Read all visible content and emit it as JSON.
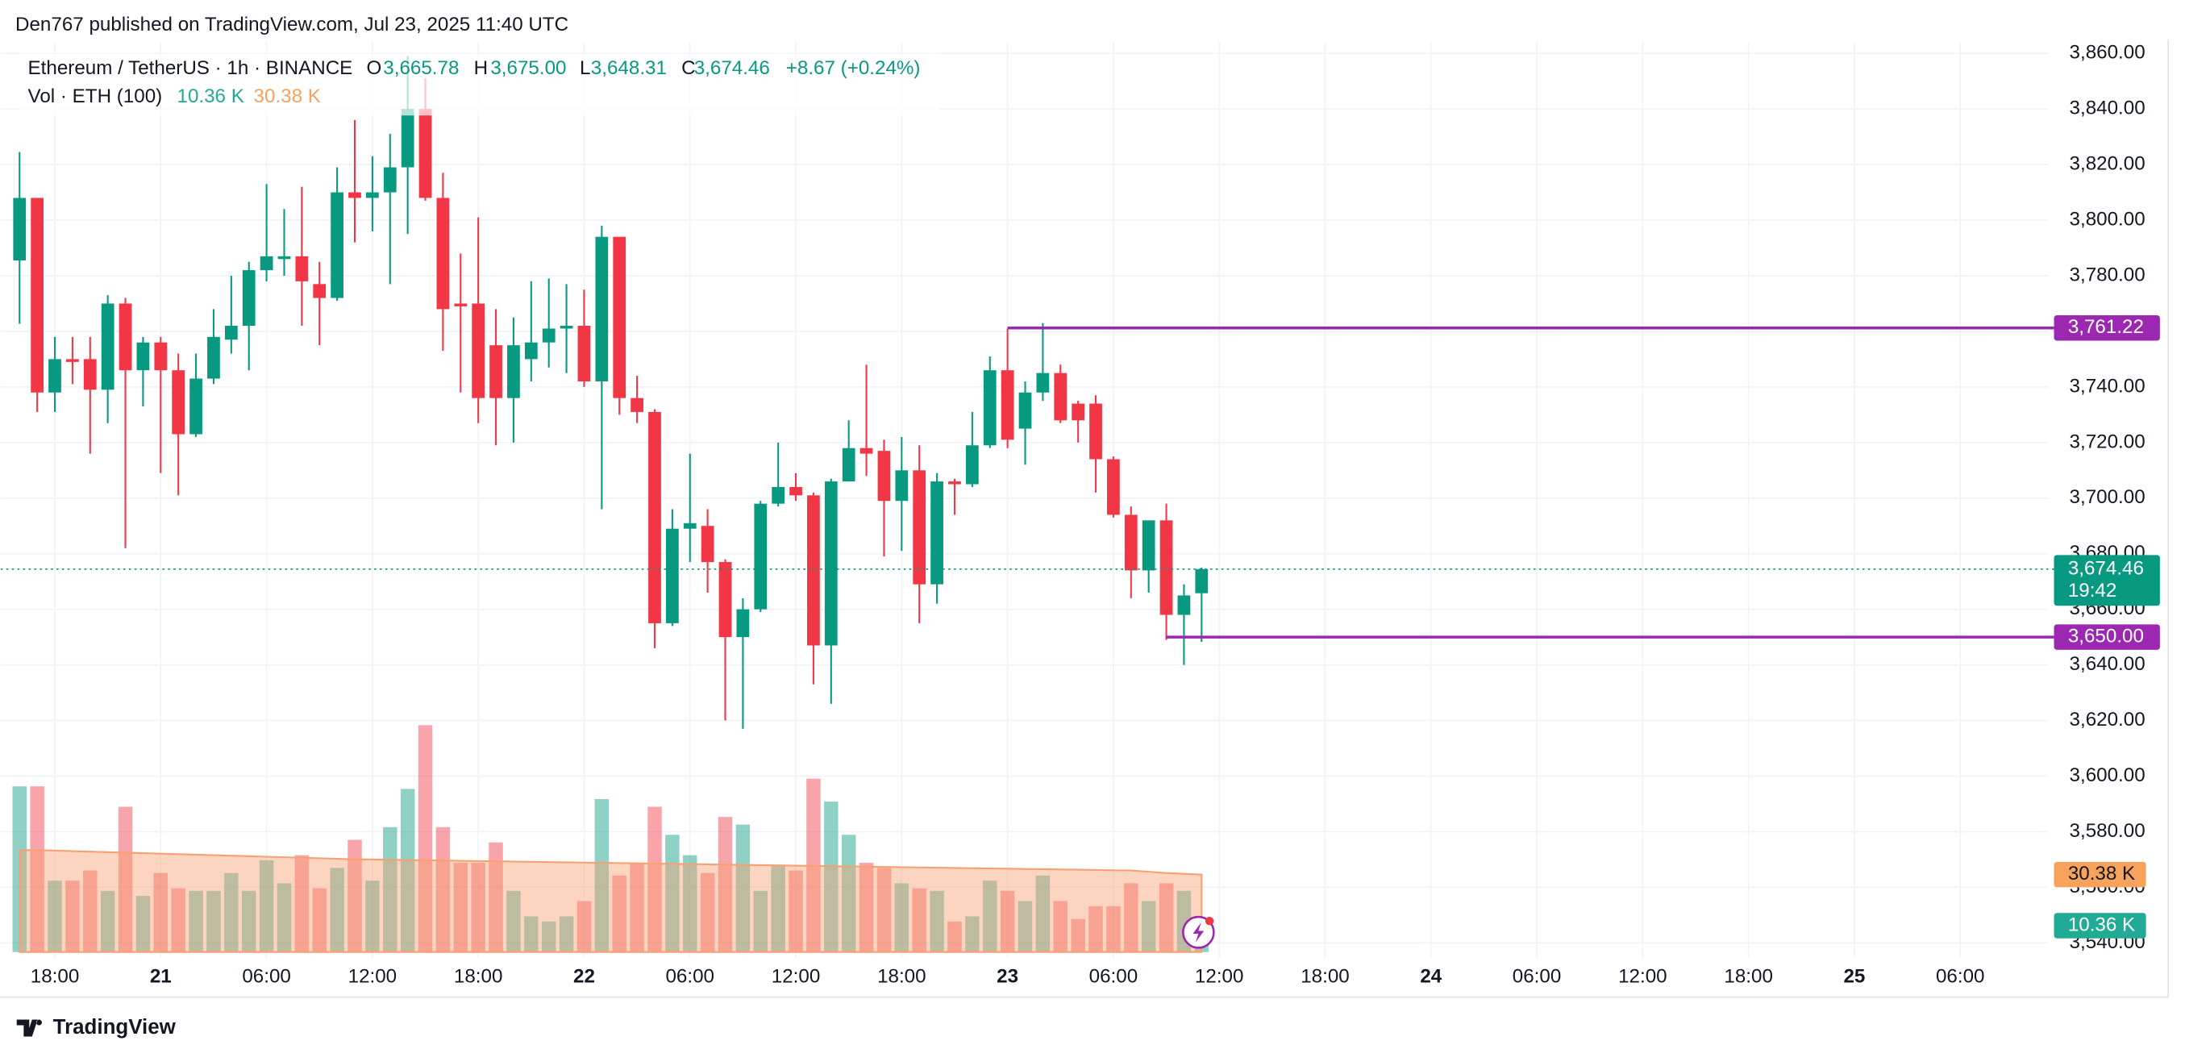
{
  "header": {
    "published": "Den767 published on TradingView.com, Jul 23, 2025 11:40 UTC",
    "footer": "TradingView"
  },
  "chart_data": {
    "type": "candlestick",
    "symbol": "Ethereum / TetherUS · 1h · BINANCE",
    "ohlc": [
      {
        "key": "O",
        "label": "3,665.78"
      },
      {
        "key": "H",
        "label": "3,675.00"
      },
      {
        "key": "L",
        "label": "3,648.31"
      },
      {
        "key": "C",
        "label": "3,674.46"
      }
    ],
    "change": "+8.67 (+0.24%)",
    "volume_title": "Vol · ETH (100)",
    "volume_label": "10.36 K",
    "volume_ma_label": "30.38 K",
    "x": [
      0,
      1,
      2,
      3,
      4,
      5,
      6,
      7,
      8,
      9,
      10,
      11,
      12,
      13,
      14,
      15,
      16,
      17,
      18,
      19,
      20,
      21,
      22,
      23,
      24,
      25,
      26,
      27,
      28,
      29,
      30,
      31,
      32,
      33,
      34,
      35,
      36,
      37,
      38,
      39,
      40,
      41,
      42,
      43,
      44,
      45,
      46,
      47,
      48,
      49,
      50,
      51,
      52,
      53,
      54,
      55,
      56,
      57,
      58,
      59,
      60,
      61,
      62,
      63,
      64,
      65,
      66,
      67
    ],
    "xlim": [
      -0.2,
      115
    ],
    "xticks": [
      {
        "value": 2,
        "label": "18:00"
      },
      {
        "value": 8,
        "label": "21"
      },
      {
        "value": 14,
        "label": "06:00"
      },
      {
        "value": 20,
        "label": "12:00"
      },
      {
        "value": 26,
        "label": "18:00"
      },
      {
        "value": 32,
        "label": "22"
      },
      {
        "value": 38,
        "label": "06:00"
      },
      {
        "value": 44,
        "label": "12:00"
      },
      {
        "value": 50,
        "label": "18:00"
      },
      {
        "value": 56,
        "label": "23"
      },
      {
        "value": 62,
        "label": "06:00"
      },
      {
        "value": 68,
        "label": "12:00"
      },
      {
        "value": 74,
        "label": "18:00"
      },
      {
        "value": 80,
        "label": "24"
      },
      {
        "value": 86,
        "label": "06:00"
      },
      {
        "value": 92,
        "label": "12:00"
      },
      {
        "value": 98,
        "label": "18:00"
      },
      {
        "value": 104,
        "label": "25"
      },
      {
        "value": 110,
        "label": "06:00"
      }
    ],
    "ylim": [
      3536.7,
      3864
    ],
    "yticks": [
      {
        "value": 3540,
        "label": "3,540.00"
      },
      {
        "value": 3560,
        "label": "3,560.00"
      },
      {
        "value": 3580,
        "label": "3,580.00"
      },
      {
        "value": 3600,
        "label": "3,600.00"
      },
      {
        "value": 3620,
        "label": "3,620.00"
      },
      {
        "value": 3640,
        "label": "3,640.00"
      },
      {
        "value": 3660,
        "label": "3,660.00"
      },
      {
        "value": 3680,
        "label": "3,680.00"
      },
      {
        "value": 3700,
        "label": "3,700.00"
      },
      {
        "value": 3720,
        "label": "3,720.00"
      },
      {
        "value": 3740,
        "label": "3,740.00"
      },
      {
        "value": 3760,
        "label": "3,760.00"
      },
      {
        "value": 3780,
        "label": "3,780.00"
      },
      {
        "value": 3800,
        "label": "3,800.00"
      },
      {
        "value": 3820,
        "label": "3,820.00"
      },
      {
        "value": 3840,
        "label": "3,840.00"
      },
      {
        "value": 3860,
        "label": "3,860.00"
      }
    ],
    "series": {
      "open": [
        3785.5,
        3808,
        3738,
        3750,
        3750,
        3739,
        3770,
        3746,
        3756,
        3746,
        3723,
        3743,
        3757,
        3762,
        3782,
        3786,
        3787,
        3777,
        3772,
        3810,
        3808,
        3810,
        3819,
        3840,
        3808,
        3770,
        3770,
        3755,
        3736,
        3750,
        3756,
        3761,
        3762,
        3742,
        3794,
        3736,
        3731,
        3655,
        3689,
        3690,
        3677,
        3650,
        3660,
        3698,
        3704,
        3701,
        3647,
        3706,
        3718,
        3717,
        3699,
        3710,
        3669,
        3706,
        3705,
        3719,
        3746,
        3725,
        3738,
        3745,
        3734,
        3734,
        3714,
        3694,
        3674,
        3692,
        3658,
        3665.78
      ],
      "high": [
        3824.5,
        3808,
        3758,
        3758,
        3758,
        3773,
        3772,
        3758,
        3758,
        3752,
        3752,
        3768,
        3780,
        3785,
        3813,
        3804,
        3812,
        3785,
        3819,
        3836,
        3823,
        3831,
        3859,
        3851,
        3817,
        3788,
        3801,
        3768,
        3765,
        3778,
        3779,
        3777,
        3775,
        3798,
        3794,
        3744,
        3732,
        3696,
        3716,
        3696,
        3678,
        3664,
        3699,
        3720,
        3709,
        3702,
        3707,
        3728,
        3748,
        3721,
        3722,
        3719,
        3709,
        3707,
        3731,
        3751,
        3761,
        3742,
        3763,
        3748,
        3735,
        3737,
        3715,
        3697,
        3692,
        3698,
        3669,
        3675
      ],
      "low": [
        3762.7,
        3731,
        3731,
        3741,
        3716,
        3727,
        3682,
        3733,
        3709,
        3701,
        3722,
        3741,
        3752,
        3746,
        3778,
        3780,
        3762,
        3755,
        3771,
        3792,
        3796,
        3777,
        3795,
        3807,
        3753,
        3738,
        3727,
        3719,
        3720,
        3742,
        3747,
        3745,
        3740,
        3696,
        3730,
        3727,
        3646,
        3654,
        3677,
        3666,
        3620,
        3617,
        3659,
        3697,
        3699,
        3633,
        3626,
        3706,
        3708,
        3679,
        3681,
        3655,
        3662,
        3694,
        3704,
        3718,
        3718,
        3712,
        3735,
        3727,
        3720,
        3702,
        3693,
        3664,
        3666,
        3649,
        3640,
        3648.31
      ],
      "close": [
        3808,
        3738,
        3750,
        3749,
        3739,
        3770,
        3746,
        3756,
        3746,
        3723,
        3743,
        3758,
        3762,
        3782,
        3787,
        3787,
        3778,
        3772,
        3810,
        3808,
        3810,
        3819,
        3840,
        3808,
        3768,
        3769,
        3736,
        3736,
        3755,
        3756,
        3761,
        3762,
        3742,
        3794,
        3736,
        3731,
        3655,
        3689,
        3691,
        3677,
        3650,
        3660,
        3698,
        3704,
        3701,
        3647,
        3706,
        3718,
        3716,
        3699,
        3710,
        3669,
        3706,
        3705,
        3719,
        3746,
        3721,
        3738,
        3745,
        3728,
        3728,
        3714,
        3694,
        3674,
        3692,
        3658,
        3665,
        3674.46
      ],
      "volume": [
        65,
        65,
        28,
        28,
        32,
        24,
        57,
        22,
        31,
        25,
        24,
        24,
        31,
        24,
        36,
        27,
        38,
        25,
        33,
        44,
        28,
        49,
        64,
        89,
        49,
        35,
        35,
        43,
        24,
        14,
        12,
        14,
        20,
        60,
        30,
        35,
        57,
        46,
        38,
        31,
        53,
        50,
        24,
        34,
        32,
        68,
        59,
        46,
        35,
        33,
        27,
        25,
        24,
        12,
        14,
        28,
        24,
        20,
        30,
        20,
        13,
        18,
        18,
        27,
        20,
        27,
        24,
        10.36
      ],
      "volume_ma": [
        40,
        40,
        39.8,
        39.6,
        39.4,
        39.2,
        39,
        38.8,
        38.6,
        38.4,
        38.2,
        38,
        37.8,
        37.6,
        37.4,
        37.2,
        37,
        36.8,
        36.6,
        36.4,
        36.3,
        36.2,
        36.1,
        36,
        35.9,
        35.8,
        35.7,
        35.6,
        35.5,
        35.4,
        35.3,
        35.2,
        35.1,
        35,
        34.9,
        34.8,
        34.7,
        34.6,
        34.5,
        34.4,
        34.3,
        34.2,
        34.1,
        34,
        33.9,
        33.8,
        33.7,
        33.6,
        33.5,
        33.4,
        33.3,
        33.2,
        33.1,
        33,
        32.9,
        32.8,
        32.7,
        32.6,
        32.5,
        32.4,
        32.3,
        32.2,
        32.1,
        32,
        31.5,
        31,
        30.7,
        30.38
      ]
    },
    "volume_ylim": [
      0,
      100
    ],
    "colors": {
      "up": "#089981",
      "down": "#f23645",
      "level": "#9c27b0",
      "ma": "#f7a172"
    },
    "grid": true,
    "last_price": {
      "value_label": "3,674.46",
      "countdown": "19:42"
    },
    "levels": [
      {
        "value": 3761.22,
        "label": "3,761.22",
        "start": 56
      },
      {
        "value": 3650,
        "label": "3,650.00",
        "start": 65
      }
    ]
  }
}
